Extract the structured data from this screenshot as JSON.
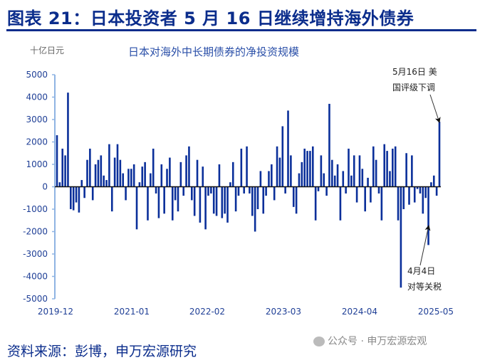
{
  "header": {
    "title": "图表 21：日本投资者 5 月 16 日继续增持海外债券"
  },
  "footer": {
    "source": "资料来源：彭博，申万宏源研究",
    "watermark": "公众号 · 申万宏源宏观"
  },
  "colors": {
    "bar": "#0a2f9a",
    "title": "#0b2d8c",
    "axis": "#8fb4e3"
  },
  "chart_data": {
    "type": "bar",
    "title": "日本对海外中长期债券的净投资规模",
    "ylabel": "十亿日元",
    "ylim": [
      -5000,
      5000
    ],
    "yticks": [
      5000,
      4000,
      3000,
      2000,
      1000,
      0,
      -1000,
      -2000,
      -3000,
      -4000,
      -5000
    ],
    "xticks": [
      "2019-12",
      "2021-01",
      "2022-02",
      "2023-03",
      "2024-04",
      "2025-05"
    ],
    "annotations": [
      {
        "line1": "5月16日 美",
        "line2": "国评级下调",
        "target": "last"
      },
      {
        "line1": "4月4日",
        "line2": "对等关税",
        "target": "2025-04-04"
      }
    ],
    "values": [
      2300,
      200,
      1700,
      1400,
      4200,
      -1000,
      -1050,
      -700,
      -1150,
      300,
      -500,
      1200,
      1700,
      -600,
      1000,
      1200,
      1400,
      500,
      300,
      1900,
      -1100,
      1300,
      1900,
      1200,
      600,
      -600,
      800,
      800,
      1000,
      -1900,
      200,
      900,
      1100,
      -1500,
      600,
      1700,
      -300,
      -1400,
      1000,
      -1200,
      800,
      1300,
      -1500,
      -600,
      -1100,
      1100,
      -400,
      1400,
      1800,
      -600,
      -1300,
      1200,
      -1600,
      900,
      -1900,
      -400,
      -300,
      -1200,
      -1300,
      1000,
      -1400,
      -1200,
      -1600,
      200,
      1100,
      -1100,
      -400,
      1700,
      -300,
      1800,
      -300,
      -1300,
      -2000,
      -1000,
      700,
      -1200,
      -400,
      700,
      1000,
      -600,
      1800,
      1300,
      2700,
      -300,
      3400,
      1400,
      -900,
      -1200,
      600,
      1100,
      1700,
      1600,
      1600,
      1800,
      -1500,
      -200,
      1400,
      600,
      -400,
      3700,
      1200,
      500,
      1000,
      -1500,
      700,
      -300,
      1700,
      500,
      1400,
      -700,
      1400,
      800,
      -1100,
      400,
      -700,
      1800,
      1200,
      -300,
      -1500,
      1900,
      1600,
      700,
      1700,
      1800,
      -1500,
      -4500,
      -1000,
      1500,
      -800,
      1400,
      -700,
      -100,
      -300,
      -1200,
      -500,
      -2600,
      200,
      500,
      -400,
      2900
    ]
  }
}
